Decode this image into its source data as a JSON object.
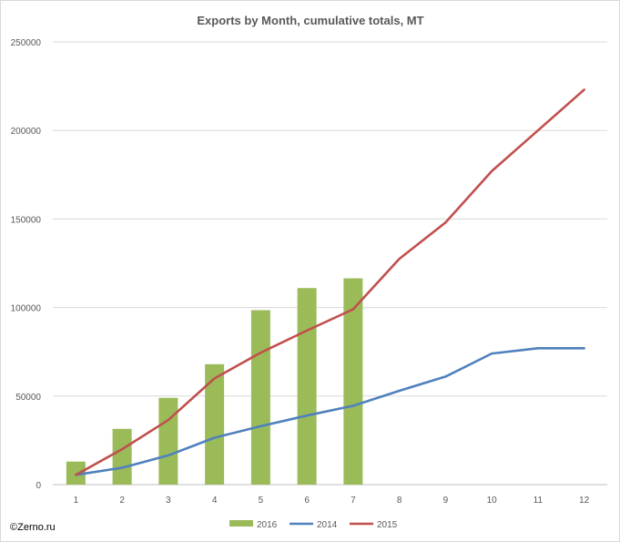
{
  "chart_data": {
    "type": "bar+line",
    "title": "Exports by Month, cumulative totals, MT",
    "xlabel": "",
    "ylabel": "",
    "categories": [
      "1",
      "2",
      "3",
      "4",
      "5",
      "6",
      "7",
      "8",
      "9",
      "10",
      "11",
      "12"
    ],
    "ylim": [
      0,
      250000
    ],
    "yticks": [
      0,
      50000,
      100000,
      150000,
      200000,
      250000
    ],
    "ytick_labels": [
      "0",
      "50000",
      "100000",
      "150000",
      "200000",
      "250000"
    ],
    "grid": true,
    "legend_position": "bottom",
    "series": [
      {
        "name": "2016",
        "kind": "bar",
        "color": "#9bbb59",
        "values": [
          13000,
          31500,
          49000,
          68000,
          98500,
          111000,
          116500,
          null,
          null,
          null,
          null,
          null
        ]
      },
      {
        "name": "2014",
        "kind": "line",
        "color": "#4f81bd",
        "values": [
          5500,
          9500,
          16500,
          26500,
          33000,
          39000,
          44500,
          53000,
          61000,
          74000,
          77000,
          77000
        ]
      },
      {
        "name": "2015",
        "kind": "line",
        "color": "#c0504d",
        "values": [
          5500,
          20000,
          36500,
          60000,
          74500,
          87000,
          99000,
          127500,
          148000,
          177000,
          200000,
          223000
        ]
      }
    ]
  },
  "copyright": "©Zerno.ru"
}
